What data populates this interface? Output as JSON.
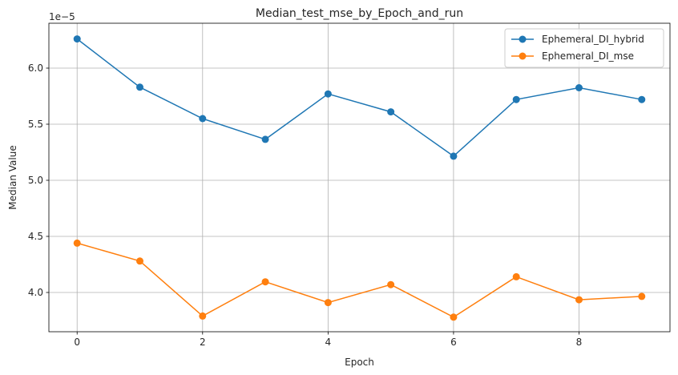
{
  "chart_data": {
    "type": "line",
    "title": "Median_test_mse_by_Epoch_and_run",
    "xlabel": "Epoch",
    "ylabel": "Median Value",
    "y_scale_label": "1e−5",
    "xlim": [
      -0.45,
      9.45
    ],
    "ylim": [
      3.65e-05,
      6.4e-05
    ],
    "x_ticks": [
      0,
      2,
      4,
      6,
      8
    ],
    "x_tick_labels": [
      "0",
      "2",
      "4",
      "6",
      "8"
    ],
    "y_ticks": [
      4e-05,
      4.5e-05,
      5e-05,
      5.5e-05,
      6e-05
    ],
    "y_tick_labels": [
      "4.0",
      "4.5",
      "5.0",
      "5.5",
      "6.0"
    ],
    "grid": true,
    "legend_position": "top-right",
    "x": [
      0,
      1,
      2,
      3,
      4,
      5,
      6,
      7,
      8,
      9
    ],
    "series": [
      {
        "name": "Ephemeral_DI_hybrid",
        "color": "#1f77b4",
        "values": [
          6.26e-05,
          5.83e-05,
          5.55e-05,
          5.365e-05,
          5.77e-05,
          5.61e-05,
          5.215e-05,
          5.72e-05,
          5.825e-05,
          5.72e-05
        ]
      },
      {
        "name": "Ephemeral_DI_mse",
        "color": "#ff7f0e",
        "values": [
          4.44e-05,
          4.28e-05,
          3.79e-05,
          4.095e-05,
          3.91e-05,
          4.07e-05,
          3.78e-05,
          4.14e-05,
          3.935e-05,
          3.965e-05
        ]
      }
    ]
  }
}
